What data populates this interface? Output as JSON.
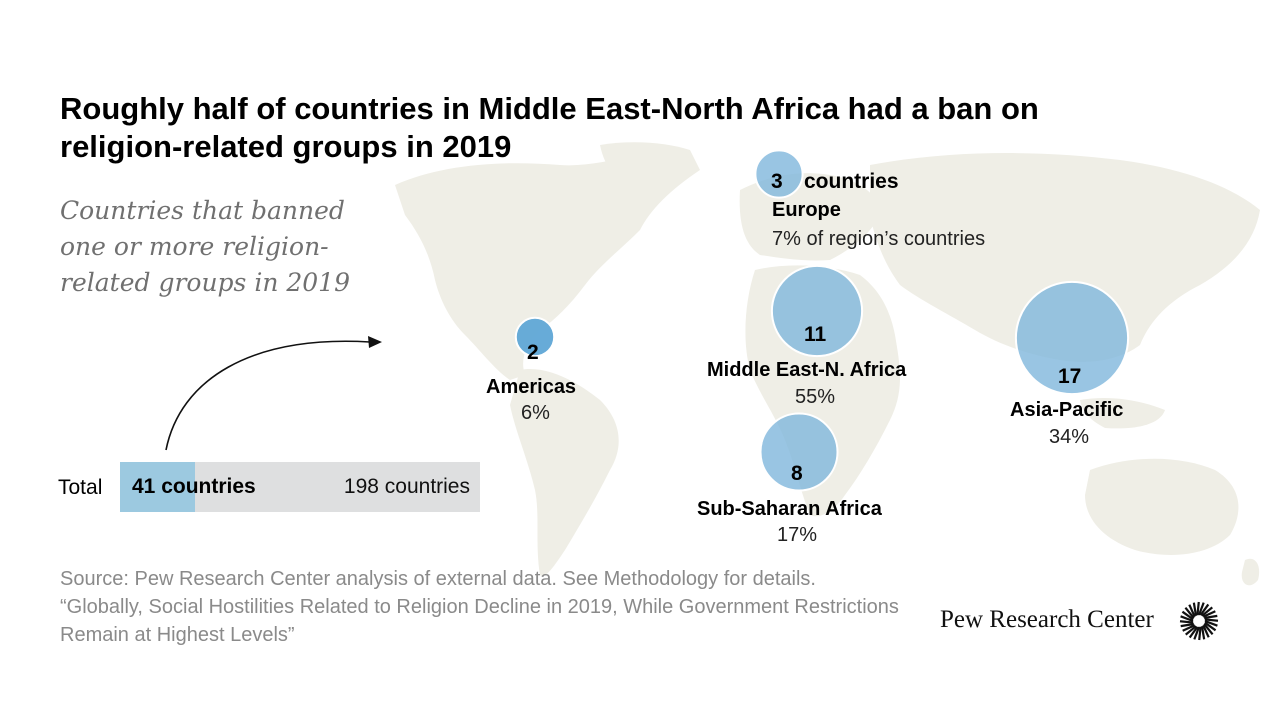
{
  "title": "Roughly half of countries in Middle East-North Africa had a ban on religion-related groups in 2019",
  "subtitle": "Countries that banned one or more religion-related groups in 2019",
  "chart_data": {
    "type": "bubble-map",
    "regions": [
      {
        "name": "Europe",
        "count": 3,
        "count_label": "3",
        "count_suffix": "countries",
        "pct_label": "7% of region’s countries",
        "pct": 7
      },
      {
        "name": "Americas",
        "count": 2,
        "count_label": "2",
        "pct_label": "6%",
        "pct": 6
      },
      {
        "name": "Middle East-N. Africa",
        "count": 11,
        "count_label": "11",
        "pct_label": "55%",
        "pct": 55
      },
      {
        "name": "Sub-Saharan Africa",
        "count": 8,
        "count_label": "8",
        "pct_label": "17%",
        "pct": 17
      },
      {
        "name": "Asia-Pacific",
        "count": 17,
        "count_label": "17",
        "pct_label": "34%",
        "pct": 34
      }
    ],
    "total": {
      "label": "Total",
      "countries": 41,
      "countries_label": "41 countries",
      "all": 198,
      "all_label": "198 countries"
    }
  },
  "colors": {
    "bubble": "#7fb7dc",
    "bubble_dark": "#5fa6d6",
    "map": "#efeee6",
    "bar_fill": "#9cc9e0",
    "bar_bg": "#dedfe0"
  },
  "source": "Source: Pew Research Center analysis of external data. See Methodology for details.",
  "report": "“Globally, Social Hostilities Related to Religion Decline in 2019, While Government Restrictions Remain at Highest Levels”",
  "logo": "Pew Research Center"
}
